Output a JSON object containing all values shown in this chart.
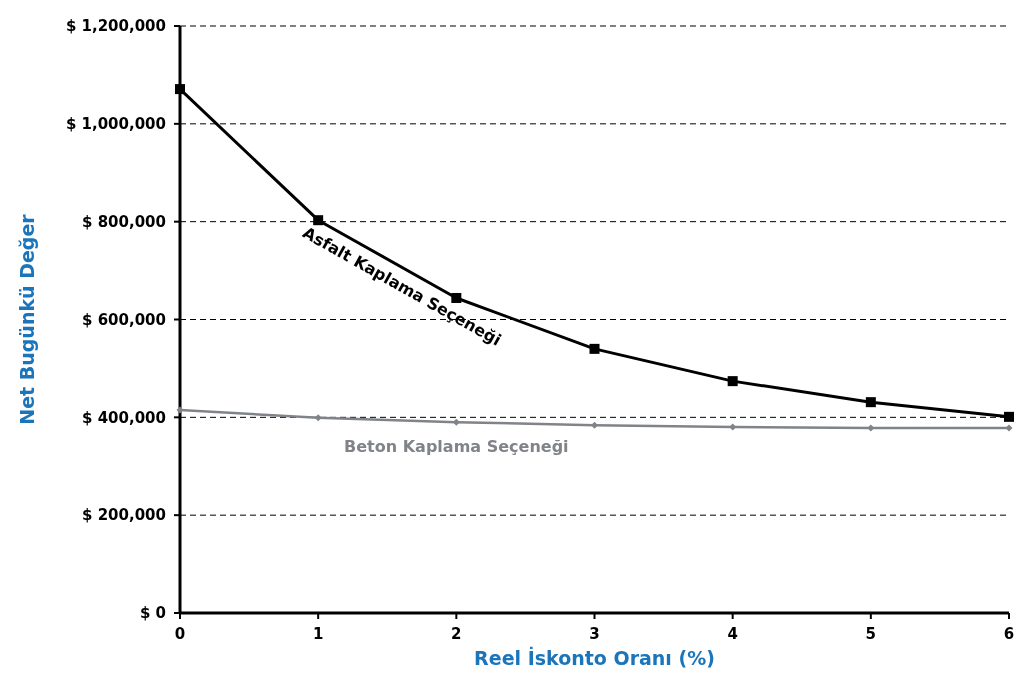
{
  "chart_data": {
    "type": "line",
    "xlabel": "Reel İskonto Oranı (%)",
    "ylabel": "Net Bugünkü Değer",
    "x": [
      0,
      1,
      2,
      3,
      4,
      5,
      6
    ],
    "series": [
      {
        "name": "Asfalt Kaplama Seçeneği",
        "color": "#000000",
        "marker": "square",
        "values": [
          1071000,
          803000,
          644000,
          540000,
          474000,
          431000,
          401000
        ]
      },
      {
        "name": "Beton Kaplama Seçeneği",
        "color": "#808488",
        "marker": "diamond",
        "values": [
          415000,
          399000,
          390000,
          384000,
          380000,
          378000,
          378000
        ]
      }
    ],
    "xlim": [
      0,
      6
    ],
    "xticks": [
      0,
      1,
      2,
      3,
      4,
      5,
      6
    ],
    "ylim": [
      0,
      1200000
    ],
    "yticks": [
      {
        "value": 0,
        "label": "$ 0"
      },
      {
        "value": 200000,
        "label": "$ 200,000"
      },
      {
        "value": 400000,
        "label": "$ 400,000"
      },
      {
        "value": 600000,
        "label": "$ 600,000"
      },
      {
        "value": 800000,
        "label": "$ 800,000"
      },
      {
        "value": 1000000,
        "label": "$ 1,000,000"
      },
      {
        "value": 1200000,
        "label": "$ 1,200,000"
      }
    ],
    "grid": "y",
    "line_style": "solid"
  }
}
